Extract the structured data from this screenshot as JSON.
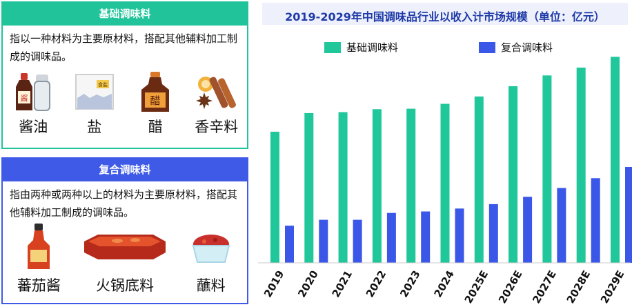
{
  "left": {
    "basic": {
      "title": "基础调味料",
      "desc": "指以一种材料为主要原材料，搭配其他辅料加工制成的调味品。",
      "items": [
        {
          "label": "酱油",
          "icon": "soy-sauce-icon"
        },
        {
          "label": "盐",
          "icon": "salt-icon"
        },
        {
          "label": "醋",
          "icon": "vinegar-icon"
        },
        {
          "label": "香辛料",
          "icon": "spices-icon"
        }
      ],
      "icon_text": {
        "soy": "酱",
        "salt": "食盐",
        "vinegar": "醋"
      }
    },
    "compound": {
      "title": "复合调味料",
      "desc": "指由两种或两种以上的材料为主要原材料，搭配其他辅料加工制成的调味品。",
      "items": [
        {
          "label": "蕃茄酱",
          "icon": "ketchup-icon"
        },
        {
          "label": "火锅底料",
          "icon": "hotpot-base-icon"
        },
        {
          "label": "蘸料",
          "icon": "dipping-sauce-icon"
        }
      ]
    },
    "colors": {
      "basic": "#20c39a",
      "compound": "#3f5ae6"
    }
  },
  "chart_data": {
    "type": "bar",
    "title": "2019-2029年中国调味品行业以收入计市场规模（单位：亿元）",
    "categories": [
      "2019",
      "2020",
      "2021",
      "2022",
      "2023",
      "2024",
      "2025E",
      "2026E",
      "2027E",
      "2028E",
      "2029E"
    ],
    "series": [
      {
        "name": "基础调味料",
        "color": "#1fc79a",
        "values": [
          2680,
          3060,
          3080,
          3140,
          3150,
          3250,
          3400,
          3610,
          3830,
          3990,
          4210
        ]
      },
      {
        "name": "复合调味料",
        "color": "#3a57e8",
        "values": [
          760,
          880,
          880,
          1020,
          1050,
          1110,
          1200,
          1350,
          1530,
          1730,
          1960
        ]
      }
    ],
    "ylim": [
      0,
      4300
    ],
    "grid": false,
    "legend": "top"
  }
}
